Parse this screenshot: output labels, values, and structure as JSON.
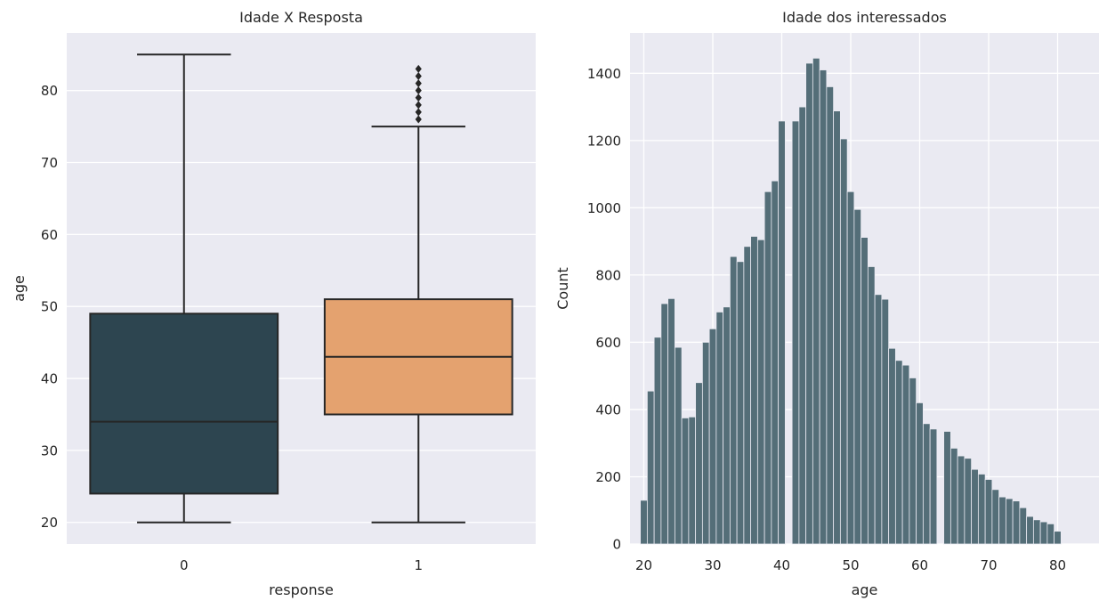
{
  "chart_data": [
    {
      "type": "box",
      "title": "Idade X Resposta",
      "xlabel": "response",
      "ylabel": "age",
      "categories": [
        "0",
        "1"
      ],
      "ylim": [
        17,
        88
      ],
      "yticks": [
        20,
        30,
        40,
        50,
        60,
        70,
        80
      ],
      "grid": true,
      "boxes": [
        {
          "category": "0",
          "whisker_low": 20,
          "q1": 24,
          "median": 34,
          "q3": 49,
          "whisker_high": 85,
          "outliers": [],
          "color": "#2d4550"
        },
        {
          "category": "1",
          "whisker_low": 20,
          "q1": 35,
          "median": 43,
          "q3": 51,
          "whisker_high": 75,
          "outliers": [
            76,
            77,
            78,
            79,
            80,
            81,
            82,
            83
          ],
          "color": "#e4a26f"
        }
      ]
    },
    {
      "type": "bar",
      "title": "Idade dos interessados",
      "xlabel": "age",
      "ylabel": "Count",
      "xlim": [
        18,
        86
      ],
      "ylim": [
        0,
        1520
      ],
      "xticks": [
        20,
        30,
        40,
        50,
        60,
        70,
        80
      ],
      "yticks": [
        0,
        200,
        400,
        600,
        800,
        1000,
        1200,
        1400
      ],
      "grid": true,
      "color": "#546e78",
      "x": [
        20,
        21,
        22,
        23,
        24,
        25,
        26,
        27,
        28,
        29,
        30,
        31,
        32,
        33,
        34,
        35,
        36,
        37,
        38,
        39,
        40,
        41,
        42,
        43,
        44,
        45,
        46,
        47,
        48,
        49,
        50,
        51,
        52,
        53,
        54,
        55,
        56,
        57,
        58,
        59,
        60,
        61,
        62,
        63,
        64,
        65,
        66,
        67,
        68,
        69,
        70,
        71,
        72,
        73,
        74,
        75,
        76,
        77,
        78,
        79,
        80
      ],
      "values": [
        130,
        455,
        615,
        715,
        730,
        585,
        375,
        378,
        480,
        600,
        640,
        690,
        705,
        855,
        840,
        885,
        915,
        905,
        1048,
        1080,
        1258,
        null,
        1258,
        1300,
        1430,
        1445,
        1410,
        1360,
        1288,
        1205,
        1048,
        995,
        912,
        825,
        742,
        728,
        582,
        546,
        532,
        494,
        420,
        358,
        342,
        null,
        335,
        285,
        262,
        255,
        222,
        208,
        192,
        162,
        140,
        135,
        128,
        108,
        82,
        72,
        66,
        60,
        38
      ]
    }
  ]
}
